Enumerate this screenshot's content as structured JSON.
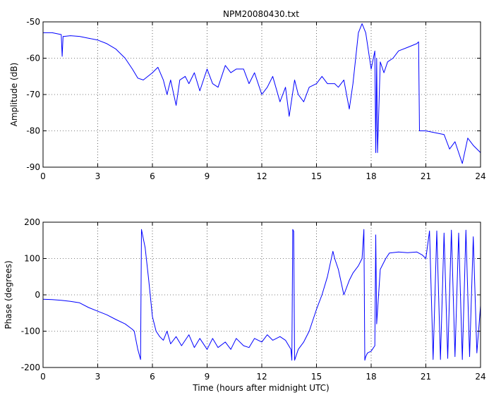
{
  "figure_title": "NPM20080430.txt",
  "colors": {
    "series": "#0000ff",
    "axes": "#000000",
    "grid": "#000000",
    "background": "#ffffff"
  },
  "chart_data": [
    {
      "type": "line",
      "title": "NPM20080430.txt",
      "xlabel": "",
      "ylabel": "Amplitude (dB)",
      "xlim": [
        0,
        24
      ],
      "ylim": [
        -90,
        -50
      ],
      "xticks": [
        0,
        3,
        6,
        9,
        12,
        15,
        18,
        21,
        24
      ],
      "yticks": [
        -90,
        -80,
        -70,
        -60,
        -50
      ],
      "grid": true,
      "series": [
        {
          "x": [
            0,
            0.5,
            1.0,
            1.05,
            1.1,
            1.15,
            1.5,
            2.0,
            2.5,
            3.0,
            3.5,
            4.0,
            4.5,
            4.9,
            5.2,
            5.5,
            6.0,
            6.3,
            6.6,
            6.8,
            7.0,
            7.3,
            7.5,
            7.8,
            8.0,
            8.3,
            8.6,
            9.0,
            9.3,
            9.6,
            10.0,
            10.3,
            10.6,
            11.0,
            11.3,
            11.6,
            12.0,
            12.3,
            12.6,
            13.0,
            13.3,
            13.5,
            13.8,
            14.0,
            14.3,
            14.6,
            15.0,
            15.3,
            15.6,
            16.0,
            16.2,
            16.5,
            16.8,
            17.0,
            17.3,
            17.5,
            17.7,
            18.0,
            18.2,
            18.25,
            18.3,
            18.35,
            18.5,
            18.7,
            18.9,
            19.2,
            19.5,
            20.0,
            20.5,
            20.6,
            20.65,
            20.7,
            21.0,
            21.5,
            22.0,
            22.3,
            22.6,
            22.8,
            23.0,
            23.3,
            23.6,
            24.0
          ],
          "values": [
            -53,
            -53,
            -53.5,
            -59.5,
            -54,
            -54,
            -53.8,
            -54,
            -54.5,
            -55,
            -56,
            -57.5,
            -60,
            -63,
            -65.5,
            -66,
            -64,
            -62.5,
            -66,
            -70,
            -66,
            -73,
            -66,
            -65,
            -67,
            -64,
            -69,
            -63,
            -67,
            -68,
            -62,
            -64,
            -63,
            -63,
            -67,
            -64,
            -70,
            -68,
            -65,
            -72,
            -68,
            -76,
            -66,
            -70,
            -72,
            -68,
            -67,
            -65,
            -67,
            -67,
            -68,
            -66,
            -74,
            -67,
            -53,
            -50.5,
            -53,
            -63,
            -58,
            -86,
            -60,
            -86,
            -61,
            -64,
            -61,
            -60,
            -58,
            -57,
            -56,
            -55.5,
            -80,
            -80,
            -80,
            -80.5,
            -81,
            -85,
            -83,
            -86,
            -89,
            -82,
            -84,
            -86
          ]
        }
      ]
    },
    {
      "type": "line",
      "title": "",
      "xlabel": "Time (hours after midnight UTC)",
      "ylabel": "Phase (degrees)",
      "xlim": [
        0,
        24
      ],
      "ylim": [
        -200,
        200
      ],
      "xticks": [
        0,
        3,
        6,
        9,
        12,
        15,
        18,
        21,
        24
      ],
      "yticks": [
        -200,
        -100,
        0,
        100,
        200
      ],
      "grid": true,
      "series": [
        {
          "x": [
            0,
            0.5,
            1.0,
            1.5,
            2.0,
            2.5,
            3.0,
            3.5,
            4.0,
            4.5,
            4.9,
            5.0,
            5.2,
            5.35,
            5.4,
            5.6,
            5.8,
            6.0,
            6.2,
            6.4,
            6.6,
            6.8,
            7.0,
            7.3,
            7.6,
            8.0,
            8.3,
            8.6,
            9.0,
            9.3,
            9.6,
            10.0,
            10.3,
            10.6,
            11.0,
            11.3,
            11.6,
            12.0,
            12.3,
            12.6,
            13.0,
            13.3,
            13.6,
            13.65,
            13.7,
            13.75,
            13.8,
            14.0,
            14.3,
            14.6,
            15.0,
            15.3,
            15.6,
            15.9,
            16.0,
            16.2,
            16.5,
            16.8,
            17.0,
            17.3,
            17.5,
            17.6,
            17.65,
            17.7,
            17.8,
            18.0,
            18.2,
            18.25,
            18.3,
            18.5,
            18.8,
            19.0,
            19.5,
            20.0,
            20.5,
            20.8,
            21.0,
            21.2,
            21.4,
            21.6,
            21.8,
            22.0,
            22.2,
            22.4,
            22.6,
            22.8,
            23.0,
            23.2,
            23.4,
            23.6,
            23.8,
            24.0
          ],
          "values": [
            -12,
            -13,
            -15,
            -18,
            -22,
            -35,
            -45,
            -55,
            -68,
            -80,
            -95,
            -100,
            -150,
            -178,
            180,
            130,
            40,
            -60,
            -100,
            -115,
            -125,
            -100,
            -135,
            -115,
            -140,
            -110,
            -145,
            -120,
            -150,
            -120,
            -145,
            -130,
            -150,
            -120,
            -140,
            -145,
            -120,
            -130,
            -110,
            -125,
            -115,
            -125,
            -150,
            -180,
            180,
            175,
            -180,
            -150,
            -130,
            -100,
            -40,
            0,
            50,
            120,
            100,
            70,
            0,
            40,
            60,
            80,
            100,
            180,
            -180,
            -170,
            -160,
            -155,
            -140,
            165,
            -80,
            70,
            100,
            115,
            118,
            116,
            118,
            110,
            100,
            176,
            -178,
            176,
            -178,
            170,
            -175,
            178,
            -170,
            170,
            -178,
            178,
            -170,
            160,
            -160,
            -30
          ]
        }
      ]
    }
  ]
}
